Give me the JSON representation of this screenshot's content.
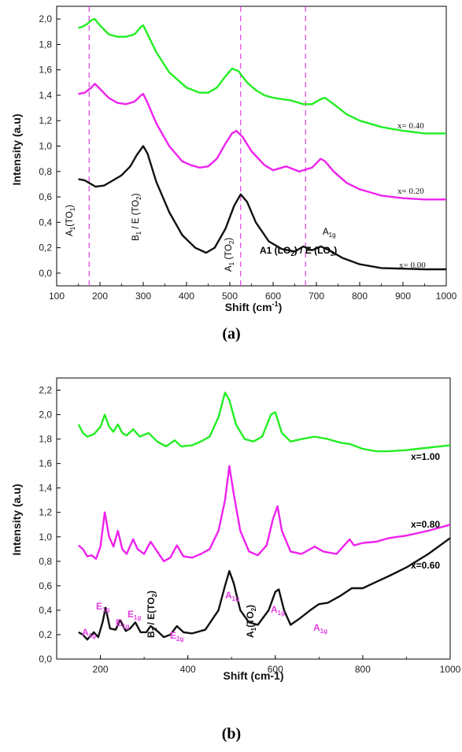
{
  "chart_data": [
    {
      "type": "line",
      "panel_label": "(a)",
      "xlabel": "Shift (cm",
      "xlabel_sup": "-1",
      "xlabel_end": ")",
      "ylabel": "Intensity (a.u)",
      "xlim": [
        100,
        1000
      ],
      "ylim": [
        -0.1,
        2.1
      ],
      "x_ticks": [
        "100",
        "200",
        "300",
        "400",
        "500",
        "600",
        "700",
        "800",
        "900",
        "1000"
      ],
      "y_ticks": [
        "0,0",
        "0,2",
        "0,4",
        "0,6",
        "0,8",
        "1,0",
        "1,2",
        "1,4",
        "1,6",
        "1,8",
        "2,0"
      ],
      "dashed_lines_x": [
        175,
        525,
        675
      ],
      "series": [
        {
          "name": "x= 0.40",
          "color": "#22ee22",
          "points": [
            [
              150,
              1.93
            ],
            [
              160,
              1.94
            ],
            [
              170,
              1.96
            ],
            [
              180,
              1.99
            ],
            [
              188,
              2.0
            ],
            [
              200,
              1.95
            ],
            [
              220,
              1.88
            ],
            [
              240,
              1.86
            ],
            [
              260,
              1.86
            ],
            [
              280,
              1.88
            ],
            [
              295,
              1.94
            ],
            [
              300,
              1.95
            ],
            [
              310,
              1.88
            ],
            [
              330,
              1.74
            ],
            [
              360,
              1.58
            ],
            [
              400,
              1.46
            ],
            [
              430,
              1.42
            ],
            [
              450,
              1.42
            ],
            [
              470,
              1.46
            ],
            [
              490,
              1.55
            ],
            [
              505,
              1.61
            ],
            [
              520,
              1.59
            ],
            [
              540,
              1.5
            ],
            [
              560,
              1.44
            ],
            [
              580,
              1.4
            ],
            [
              600,
              1.38
            ],
            [
              640,
              1.36
            ],
            [
              670,
              1.33
            ],
            [
              690,
              1.33
            ],
            [
              710,
              1.37
            ],
            [
              720,
              1.38
            ],
            [
              740,
              1.33
            ],
            [
              770,
              1.25
            ],
            [
              800,
              1.2
            ],
            [
              850,
              1.15
            ],
            [
              900,
              1.12
            ],
            [
              950,
              1.1
            ],
            [
              1000,
              1.1
            ]
          ]
        },
        {
          "name": "x= 0.20",
          "color": "#ee22ee",
          "points": [
            [
              150,
              1.41
            ],
            [
              165,
              1.42
            ],
            [
              180,
              1.46
            ],
            [
              188,
              1.49
            ],
            [
              200,
              1.45
            ],
            [
              220,
              1.38
            ],
            [
              240,
              1.34
            ],
            [
              260,
              1.33
            ],
            [
              280,
              1.35
            ],
            [
              295,
              1.4
            ],
            [
              300,
              1.41
            ],
            [
              310,
              1.34
            ],
            [
              330,
              1.18
            ],
            [
              360,
              1.0
            ],
            [
              390,
              0.88
            ],
            [
              410,
              0.85
            ],
            [
              430,
              0.83
            ],
            [
              450,
              0.84
            ],
            [
              470,
              0.9
            ],
            [
              490,
              1.02
            ],
            [
              505,
              1.1
            ],
            [
              515,
              1.12
            ],
            [
              530,
              1.07
            ],
            [
              550,
              0.96
            ],
            [
              580,
              0.85
            ],
            [
              600,
              0.81
            ],
            [
              630,
              0.84
            ],
            [
              660,
              0.8
            ],
            [
              690,
              0.83
            ],
            [
              710,
              0.9
            ],
            [
              720,
              0.88
            ],
            [
              740,
              0.8
            ],
            [
              770,
              0.71
            ],
            [
              800,
              0.66
            ],
            [
              850,
              0.61
            ],
            [
              900,
              0.59
            ],
            [
              950,
              0.58
            ],
            [
              1000,
              0.58
            ]
          ]
        },
        {
          "name": "x= 0.00",
          "color": "#111111",
          "points": [
            [
              150,
              0.74
            ],
            [
              165,
              0.73
            ],
            [
              175,
              0.71
            ],
            [
              190,
              0.68
            ],
            [
              210,
              0.69
            ],
            [
              230,
              0.73
            ],
            [
              250,
              0.77
            ],
            [
              270,
              0.84
            ],
            [
              285,
              0.93
            ],
            [
              300,
              1.0
            ],
            [
              310,
              0.94
            ],
            [
              330,
              0.72
            ],
            [
              360,
              0.48
            ],
            [
              390,
              0.3
            ],
            [
              420,
              0.2
            ],
            [
              445,
              0.16
            ],
            [
              465,
              0.2
            ],
            [
              490,
              0.35
            ],
            [
              510,
              0.53
            ],
            [
              525,
              0.62
            ],
            [
              540,
              0.56
            ],
            [
              560,
              0.4
            ],
            [
              590,
              0.25
            ],
            [
              620,
              0.19
            ],
            [
              650,
              0.17
            ],
            [
              670,
              0.21
            ],
            [
              690,
              0.18
            ],
            [
              710,
              0.21
            ],
            [
              730,
              0.18
            ],
            [
              760,
              0.12
            ],
            [
              800,
              0.07
            ],
            [
              850,
              0.04
            ],
            [
              900,
              0.035
            ],
            [
              950,
              0.03
            ],
            [
              1000,
              0.03
            ]
          ]
        }
      ]
    },
    {
      "type": "line",
      "panel_label": "(b)",
      "xlabel": "Shift (cm-1)",
      "ylabel": "Intensity (a.u)",
      "xlim": [
        100,
        1000
      ],
      "ylim": [
        0.0,
        2.3
      ],
      "x_ticks": [
        "200",
        "400",
        "600",
        "800",
        "1000"
      ],
      "y_ticks": [
        "0,0",
        "0,2",
        "0,4",
        "0,6",
        "0,8",
        "1,0",
        "1,2",
        "1,4",
        "1,6",
        "1,8",
        "2,0",
        "2,2"
      ],
      "series": [
        {
          "name": "x=1.00",
          "color": "#22ee22",
          "points": [
            [
              150,
              1.92
            ],
            [
              160,
              1.85
            ],
            [
              170,
              1.82
            ],
            [
              185,
              1.84
            ],
            [
              200,
              1.9
            ],
            [
              210,
              2.0
            ],
            [
              220,
              1.9
            ],
            [
              230,
              1.86
            ],
            [
              240,
              1.92
            ],
            [
              250,
              1.85
            ],
            [
              260,
              1.83
            ],
            [
              275,
              1.88
            ],
            [
              290,
              1.82
            ],
            [
              310,
              1.85
            ],
            [
              330,
              1.78
            ],
            [
              350,
              1.74
            ],
            [
              370,
              1.79
            ],
            [
              385,
              1.74
            ],
            [
              410,
              1.75
            ],
            [
              430,
              1.78
            ],
            [
              450,
              1.82
            ],
            [
              470,
              1.98
            ],
            [
              485,
              2.18
            ],
            [
              495,
              2.12
            ],
            [
              510,
              1.92
            ],
            [
              530,
              1.8
            ],
            [
              550,
              1.78
            ],
            [
              570,
              1.82
            ],
            [
              590,
              2.0
            ],
            [
              600,
              2.02
            ],
            [
              615,
              1.85
            ],
            [
              635,
              1.78
            ],
            [
              660,
              1.8
            ],
            [
              690,
              1.82
            ],
            [
              720,
              1.8
            ],
            [
              750,
              1.77
            ],
            [
              770,
              1.76
            ],
            [
              800,
              1.72
            ],
            [
              830,
              1.7
            ],
            [
              860,
              1.7
            ],
            [
              900,
              1.71
            ],
            [
              950,
              1.73
            ],
            [
              1000,
              1.75
            ]
          ]
        },
        {
          "name": "x=0.80",
          "color": "#ee22ee",
          "points": [
            [
              150,
              0.93
            ],
            [
              160,
              0.9
            ],
            [
              170,
              0.84
            ],
            [
              180,
              0.85
            ],
            [
              190,
              0.82
            ],
            [
              200,
              0.92
            ],
            [
              210,
              1.2
            ],
            [
              220,
              1.0
            ],
            [
              230,
              0.92
            ],
            [
              240,
              1.05
            ],
            [
              250,
              0.9
            ],
            [
              260,
              0.86
            ],
            [
              275,
              0.98
            ],
            [
              285,
              0.9
            ],
            [
              300,
              0.86
            ],
            [
              315,
              0.96
            ],
            [
              330,
              0.88
            ],
            [
              345,
              0.8
            ],
            [
              360,
              0.83
            ],
            [
              375,
              0.93
            ],
            [
              390,
              0.84
            ],
            [
              410,
              0.83
            ],
            [
              430,
              0.86
            ],
            [
              450,
              0.9
            ],
            [
              470,
              1.05
            ],
            [
              485,
              1.3
            ],
            [
              495,
              1.58
            ],
            [
              505,
              1.35
            ],
            [
              520,
              1.05
            ],
            [
              540,
              0.88
            ],
            [
              560,
              0.85
            ],
            [
              580,
              0.93
            ],
            [
              595,
              1.15
            ],
            [
              605,
              1.25
            ],
            [
              615,
              1.05
            ],
            [
              635,
              0.88
            ],
            [
              660,
              0.86
            ],
            [
              690,
              0.92
            ],
            [
              710,
              0.88
            ],
            [
              740,
              0.86
            ],
            [
              770,
              0.98
            ],
            [
              780,
              0.93
            ],
            [
              800,
              0.95
            ],
            [
              830,
              0.96
            ],
            [
              860,
              0.99
            ],
            [
              900,
              1.01
            ],
            [
              950,
              1.05
            ],
            [
              1000,
              1.1
            ]
          ]
        },
        {
          "name": "x=0.60",
          "color": "#111111",
          "points": [
            [
              150,
              0.22
            ],
            [
              160,
              0.2
            ],
            [
              170,
              0.16
            ],
            [
              185,
              0.22
            ],
            [
              195,
              0.18
            ],
            [
              205,
              0.3
            ],
            [
              212,
              0.42
            ],
            [
              222,
              0.25
            ],
            [
              235,
              0.24
            ],
            [
              245,
              0.32
            ],
            [
              258,
              0.23
            ],
            [
              268,
              0.25
            ],
            [
              280,
              0.3
            ],
            [
              292,
              0.22
            ],
            [
              305,
              0.22
            ],
            [
              315,
              0.27
            ],
            [
              330,
              0.23
            ],
            [
              345,
              0.18
            ],
            [
              360,
              0.2
            ],
            [
              375,
              0.27
            ],
            [
              390,
              0.22
            ],
            [
              410,
              0.21
            ],
            [
              440,
              0.24
            ],
            [
              470,
              0.4
            ],
            [
              485,
              0.6
            ],
            [
              495,
              0.72
            ],
            [
              505,
              0.62
            ],
            [
              520,
              0.4
            ],
            [
              540,
              0.3
            ],
            [
              560,
              0.28
            ],
            [
              585,
              0.4
            ],
            [
              600,
              0.55
            ],
            [
              608,
              0.57
            ],
            [
              620,
              0.4
            ],
            [
              635,
              0.28
            ],
            [
              655,
              0.33
            ],
            [
              680,
              0.4
            ],
            [
              700,
              0.45
            ],
            [
              720,
              0.46
            ],
            [
              750,
              0.52
            ],
            [
              775,
              0.58
            ],
            [
              800,
              0.58
            ],
            [
              830,
              0.63
            ],
            [
              860,
              0.68
            ],
            [
              900,
              0.75
            ],
            [
              950,
              0.86
            ],
            [
              1000,
              0.99
            ]
          ]
        }
      ]
    }
  ],
  "annotations_a": {
    "a1_to1": "A",
    "a1_to1_sub": "1",
    "a1_to1_rest": "(TO",
    "a1_to1_sub2": "1",
    "a1_to1_end": ")",
    "b1e": "B",
    "b1e_sub": "1",
    "b1e_rest": " / E (TO",
    "b1e_sub2": "2",
    "b1e_end": ")",
    "a1_to2": "A",
    "a1_to2_sub": "1",
    "a1_to2_rest": " (TO",
    "a1_to2_sub2": "2",
    "a1_to2_end": ")",
    "a1g": "A",
    "a1g_sub": "1g",
    "a1lo": "A1 (LO",
    "a1lo_sub": "2",
    "a1lo_rest": ") / E (LO",
    "a1lo_sub2": "3",
    "a1lo_end": ")",
    "label_040": "x= 0.40",
    "label_020": "x= 0.20",
    "label_000": "x= 0.00"
  },
  "annotations_b": {
    "A": "A",
    "E": "E",
    "sub_1g": "1g",
    "sub_2g": "2g",
    "b1e": "B",
    "b1e_sub": "1",
    "b1e_rest": " / E(TO",
    "b1e_sub2": "2",
    "b1e_end": ")",
    "a1to2": "A",
    "a1to2_sub": "1",
    "a1to2_rest": "(TO",
    "a1to2_sub2": "2",
    "a1to2_end": ")",
    "label_100": "x=1.00",
    "label_080": "x=0.80",
    "label_060": "x=0.60"
  },
  "colors": {
    "green": "#22ee22",
    "magenta": "#ee22ee",
    "black": "#111111",
    "annotation_magenta": "#e040e0"
  }
}
